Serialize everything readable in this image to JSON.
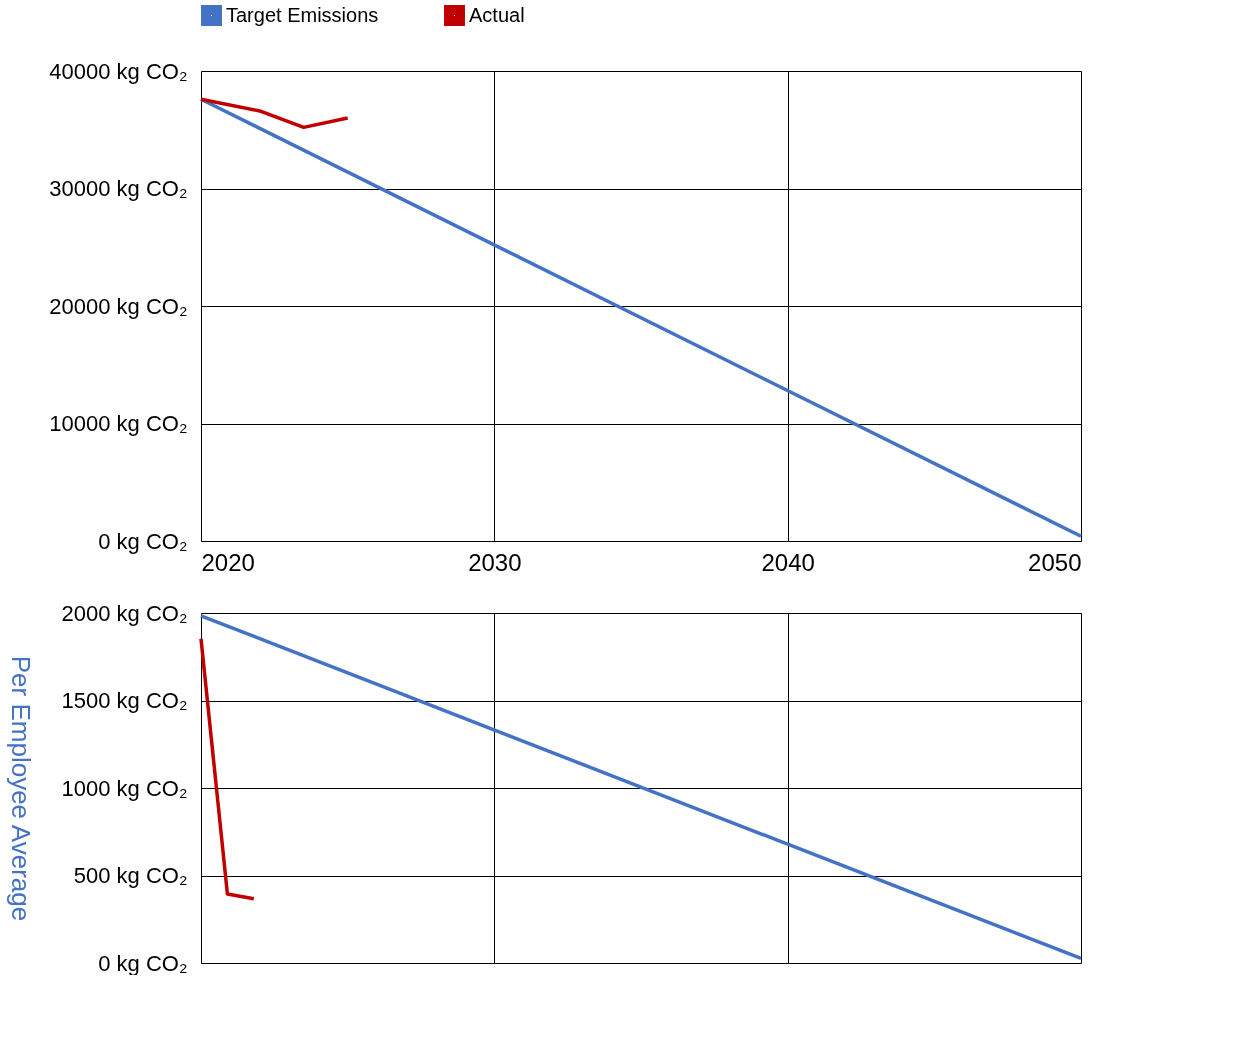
{
  "chart_data": [
    {
      "type": "line",
      "legend": "top",
      "grid": true,
      "marker": "none",
      "line_style": "solid",
      "xlim": [
        2020,
        2050
      ],
      "xticks": [
        2020,
        2030,
        2040,
        2050
      ],
      "ylim": [
        0,
        40000
      ],
      "yticks": [
        {
          "value": 0,
          "label": "0 kg CO₂"
        },
        {
          "value": 10000,
          "label": "10000 kg CO₂"
        },
        {
          "value": 20000,
          "label": "20000 kg CO₂"
        },
        {
          "value": 30000,
          "label": "30000 kg CO₂"
        },
        {
          "value": 40000,
          "label": "40000 kg CO₂"
        }
      ],
      "series": [
        {
          "name": "Target Emissions",
          "color": "#4472c4",
          "x": [
            2020,
            2050
          ],
          "values": [
            37600,
            400
          ]
        },
        {
          "name": "Actual",
          "color": "#c00000",
          "x": [
            2020,
            2022,
            2023.5,
            2025
          ],
          "values": [
            37600,
            36600,
            35200,
            36000
          ]
        }
      ]
    },
    {
      "type": "line",
      "legend": false,
      "grid": true,
      "marker": "none",
      "line_style": "solid",
      "tick_labels": "y",
      "ylabel": "Per Employee Average",
      "xlim": [
        2020,
        2050
      ],
      "xticks": [
        {
          "value": 2020,
          "label": null
        },
        {
          "value": 2030,
          "label": null
        },
        {
          "value": 2040,
          "label": null
        },
        {
          "value": 2050,
          "label": null
        }
      ],
      "ylim": [
        0,
        2000
      ],
      "yticks": [
        {
          "value": 0,
          "label": "0 kg CO₂"
        },
        {
          "value": 500,
          "label": "500 kg CO₂"
        },
        {
          "value": 1000,
          "label": "1000 kg CO₂"
        },
        {
          "value": 1500,
          "label": "1500 kg CO₂"
        },
        {
          "value": 2000,
          "label": "2000 kg CO₂"
        }
      ],
      "series": [
        {
          "color": "#4472c4",
          "x": [
            2020,
            2050
          ],
          "values": [
            1984,
            26
          ]
        },
        {
          "color": "#c00000",
          "x": [
            2020,
            2020.9,
            2021.8
          ],
          "values": [
            1853,
            394,
            367
          ]
        }
      ]
    }
  ]
}
